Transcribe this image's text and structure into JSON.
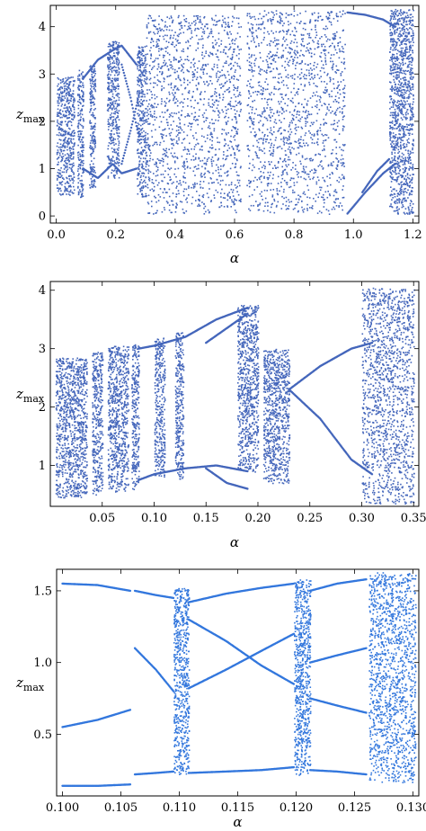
{
  "chart_data": [
    {
      "type": "scatter",
      "title": "",
      "xlabel": "α",
      "ylabel_main": "z",
      "ylabel_sub": "max",
      "xlim": [
        -0.02,
        1.22
      ],
      "ylim": [
        -0.15,
        4.45
      ],
      "xticks": [
        0.0,
        0.2,
        0.4,
        0.6,
        0.8,
        1.0,
        1.2
      ],
      "xticklabels": [
        "0.0",
        "0.2",
        "0.4",
        "0.6",
        "0.8",
        "1.0",
        "1.2"
      ],
      "yticks": [
        0,
        1,
        2,
        3,
        4
      ],
      "yticklabels": [
        "0",
        "1",
        "2",
        "3",
        "4"
      ],
      "color": "#4466bb",
      "chaotic_bands": [
        {
          "x0": 0.0,
          "x1": 0.06,
          "lo": 0.45,
          "hi": 2.95
        },
        {
          "x0": 0.07,
          "x1": 0.09,
          "lo": 0.4,
          "hi": 3.1
        },
        {
          "x0": 0.11,
          "x1": 0.13,
          "lo": 0.6,
          "hi": 3.2
        },
        {
          "x0": 0.17,
          "x1": 0.21,
          "lo": 0.8,
          "hi": 3.7
        },
        {
          "x0": 0.27,
          "x1": 0.3,
          "lo": 0.4,
          "hi": 3.6
        },
        {
          "x0": 0.3,
          "x1": 0.62,
          "lo": 0.05,
          "hi": 4.25
        },
        {
          "x0": 0.64,
          "x1": 0.97,
          "lo": 0.05,
          "hi": 4.35
        },
        {
          "x0": 1.12,
          "x1": 1.2,
          "lo": 0.05,
          "hi": 4.4
        }
      ],
      "periodic_branches": [
        {
          "x": [
            0.09,
            0.14,
            0.19,
            0.22,
            0.27
          ],
          "y": [
            1.0,
            0.8,
            1.1,
            0.9,
            1.0
          ]
        },
        {
          "x": [
            0.09,
            0.14,
            0.19,
            0.22,
            0.27
          ],
          "y": [
            2.9,
            3.3,
            3.5,
            3.6,
            3.2
          ]
        },
        {
          "x": [
            0.22,
            0.25,
            0.28
          ],
          "y": [
            1.1,
            1.8,
            2.6
          ]
        },
        {
          "x": [
            0.22,
            0.25,
            0.28
          ],
          "y": [
            3.2,
            2.5,
            1.6
          ]
        },
        {
          "x": [
            0.98,
            1.04,
            1.1,
            1.14
          ],
          "y": [
            0.05,
            0.5,
            0.9,
            1.1
          ]
        },
        {
          "x": [
            0.98,
            1.04,
            1.1,
            1.14
          ],
          "y": [
            4.3,
            4.25,
            4.15,
            4.0
          ]
        },
        {
          "x": [
            1.03,
            1.08,
            1.12
          ],
          "y": [
            0.5,
            0.95,
            1.2
          ]
        }
      ]
    },
    {
      "type": "scatter",
      "title": "",
      "xlabel": "α",
      "ylabel_main": "z",
      "ylabel_sub": "max",
      "xlim": [
        0.0,
        0.355
      ],
      "ylim": [
        0.3,
        4.15
      ],
      "xticks": [
        0.05,
        0.1,
        0.15,
        0.2,
        0.25,
        0.3,
        0.35
      ],
      "xticklabels": [
        "0.05",
        "0.10",
        "0.15",
        "0.20",
        "0.25",
        "0.30",
        "0.35"
      ],
      "yticks": [
        1,
        2,
        3,
        4
      ],
      "yticklabels": [
        "1",
        "2",
        "3",
        "4"
      ],
      "color": "#4466bb",
      "chaotic_bands": [
        {
          "x0": 0.005,
          "x1": 0.035,
          "lo": 0.45,
          "hi": 2.85
        },
        {
          "x0": 0.04,
          "x1": 0.05,
          "lo": 0.5,
          "hi": 2.95
        },
        {
          "x0": 0.055,
          "x1": 0.075,
          "lo": 0.55,
          "hi": 3.05
        },
        {
          "x0": 0.078,
          "x1": 0.085,
          "lo": 0.6,
          "hi": 3.1
        },
        {
          "x0": 0.1,
          "x1": 0.11,
          "lo": 0.8,
          "hi": 3.2
        },
        {
          "x0": 0.12,
          "x1": 0.128,
          "lo": 0.75,
          "hi": 3.3
        },
        {
          "x0": 0.18,
          "x1": 0.2,
          "lo": 0.9,
          "hi": 3.75
        },
        {
          "x0": 0.205,
          "x1": 0.23,
          "lo": 0.7,
          "hi": 3.0
        },
        {
          "x0": 0.3,
          "x1": 0.35,
          "lo": 0.35,
          "hi": 4.05
        }
      ],
      "periodic_branches": [
        {
          "x": [
            0.085,
            0.1,
            0.13,
            0.16,
            0.19
          ],
          "y": [
            0.75,
            0.85,
            0.95,
            1.0,
            0.9
          ]
        },
        {
          "x": [
            0.085,
            0.1,
            0.13,
            0.16,
            0.19
          ],
          "y": [
            3.0,
            3.05,
            3.2,
            3.5,
            3.7
          ]
        },
        {
          "x": [
            0.15,
            0.17,
            0.19
          ],
          "y": [
            0.95,
            0.7,
            0.6
          ]
        },
        {
          "x": [
            0.15,
            0.17,
            0.19
          ],
          "y": [
            3.1,
            3.35,
            3.6
          ]
        },
        {
          "x": [
            0.23,
            0.26,
            0.29,
            0.31
          ],
          "y": [
            2.3,
            2.7,
            3.0,
            3.1
          ]
        },
        {
          "x": [
            0.23,
            0.26,
            0.29,
            0.31
          ],
          "y": [
            2.3,
            1.8,
            1.1,
            0.85
          ]
        }
      ]
    },
    {
      "type": "scatter",
      "title": "",
      "xlabel": "α",
      "ylabel_main": "z",
      "ylabel_sub": "max",
      "xlim": [
        0.0995,
        0.1305
      ],
      "ylim": [
        0.07,
        1.65
      ],
      "xticks": [
        0.1,
        0.105,
        0.11,
        0.115,
        0.12,
        0.125,
        0.13
      ],
      "xticklabels": [
        "0.100",
        "0.105",
        "0.110",
        "0.115",
        "0.120",
        "0.125",
        "0.130"
      ],
      "yticks": [
        0.5,
        1.0,
        1.5
      ],
      "yticklabels": [
        "0.5",
        "1.0",
        "1.5"
      ],
      "color": "#3377dd",
      "chaotic_bands": [
        {
          "x0": 0.1095,
          "x1": 0.1108,
          "lo": 0.22,
          "hi": 1.52
        },
        {
          "x0": 0.1198,
          "x1": 0.1212,
          "lo": 0.22,
          "hi": 1.58
        },
        {
          "x0": 0.1262,
          "x1": 0.1302,
          "lo": 0.16,
          "hi": 1.63
        }
      ],
      "periodic_branches": [
        {
          "x": [
            0.1,
            0.103,
            0.1058
          ],
          "y": [
            1.55,
            1.54,
            1.5
          ]
        },
        {
          "x": [
            0.1,
            0.103,
            0.1058
          ],
          "y": [
            0.55,
            0.6,
            0.67
          ]
        },
        {
          "x": [
            0.1,
            0.103,
            0.1058
          ],
          "y": [
            0.14,
            0.14,
            0.15
          ]
        },
        {
          "x": [
            0.1062,
            0.108,
            0.1095
          ],
          "y": [
            1.5,
            1.47,
            1.45
          ]
        },
        {
          "x": [
            0.1062,
            0.108,
            0.1095
          ],
          "y": [
            0.22,
            0.23,
            0.24
          ]
        },
        {
          "x": [
            0.1062,
            0.108,
            0.1095
          ],
          "y": [
            1.1,
            0.95,
            0.8
          ]
        },
        {
          "x": [
            0.1108,
            0.114,
            0.117,
            0.1198
          ],
          "y": [
            1.42,
            1.48,
            1.52,
            1.55
          ]
        },
        {
          "x": [
            0.1108,
            0.114,
            0.117,
            0.1198
          ],
          "y": [
            0.82,
            0.95,
            1.08,
            1.2
          ]
        },
        {
          "x": [
            0.1108,
            0.114,
            0.117,
            0.1198
          ],
          "y": [
            1.3,
            1.15,
            0.98,
            0.85
          ]
        },
        {
          "x": [
            0.1108,
            0.114,
            0.117,
            0.1198
          ],
          "y": [
            0.23,
            0.24,
            0.25,
            0.27
          ]
        },
        {
          "x": [
            0.1212,
            0.1235,
            0.126
          ],
          "y": [
            1.5,
            1.55,
            1.58
          ]
        },
        {
          "x": [
            0.1212,
            0.1235,
            0.126
          ],
          "y": [
            1.0,
            1.05,
            1.1
          ]
        },
        {
          "x": [
            0.1212,
            0.1235,
            0.126
          ],
          "y": [
            0.25,
            0.24,
            0.22
          ]
        },
        {
          "x": [
            0.1212,
            0.1235,
            0.126
          ],
          "y": [
            0.75,
            0.7,
            0.65
          ]
        }
      ]
    }
  ]
}
